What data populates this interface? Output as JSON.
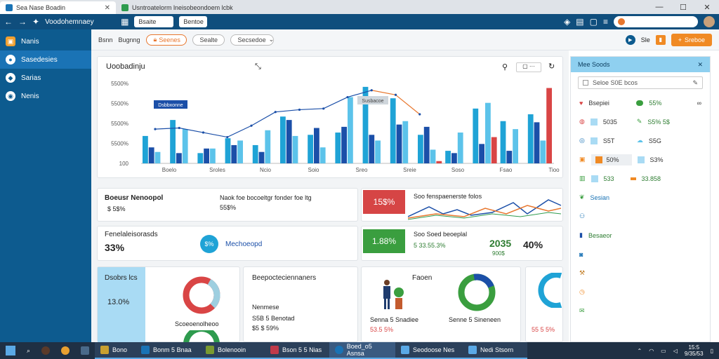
{
  "browser": {
    "tabs": [
      {
        "label": "Sea Nase Boadin",
        "active": true
      },
      {
        "label": "Voodo chemnaey",
        "active": false
      }
    ],
    "url": "Usntroatelorm lneisobeondoem lcbk",
    "window_controls": {
      "minimize": "—",
      "maximize": "☐",
      "close": "✕"
    }
  },
  "nav": {
    "path_label": "Voodohemnaey",
    "chips": [
      "Bsaite",
      "Bentoe"
    ]
  },
  "sidebar": {
    "items": [
      {
        "label": "Nanis",
        "active": false
      },
      {
        "label": "Sasedesies",
        "active": true
      },
      {
        "label": "Sarias",
        "active": false
      },
      {
        "label": "Nenis",
        "active": false
      }
    ]
  },
  "toolbar": {
    "links": [
      "Bsnn",
      "Bugnng"
    ],
    "pills": [
      "Seenes",
      "Sealte",
      "Secsedoe"
    ],
    "icon_text": "Sle",
    "action_label": "Sreboe"
  },
  "chart_card": {
    "title": "Uoobadinju",
    "callout_left": "Dsbbxonne",
    "callout_right": "Susbacoe"
  },
  "chart_data": {
    "type": "bar",
    "title": "Uoobadinju",
    "yticks": [
      "5500%",
      "5500%",
      "5500%",
      "5500%",
      "100"
    ],
    "xticks": [
      "Boelo",
      "Sroles",
      "Ncio",
      "Soio",
      "Sreo",
      "Sreie",
      "Soso",
      "Fsao",
      "Tioo"
    ],
    "series": [
      {
        "color": "#1fa3d6",
        "values": [
          24,
          38,
          9,
          22,
          16,
          41,
          25,
          27,
          67,
          57,
          25,
          11,
          48,
          37,
          43
        ]
      },
      {
        "color": "#1b4fa8",
        "values": [
          14,
          9,
          13,
          16,
          10,
          38,
          31,
          32,
          25,
          34,
          32,
          9,
          17,
          11,
          36
        ]
      },
      {
        "color": "#5cc3ea",
        "values": [
          10,
          30,
          13,
          20,
          29,
          24,
          14,
          58,
          20,
          37,
          12,
          27,
          53,
          30,
          20
        ]
      },
      {
        "color": "#d94545",
        "values": [
          0,
          0,
          0,
          0,
          0,
          0,
          0,
          0,
          0,
          0,
          2,
          0,
          23,
          0,
          66
        ]
      }
    ],
    "line": [
      30,
      31,
      27,
      23,
      33,
      45,
      47,
      48,
      58,
      64,
      60,
      43,
      51,
      47,
      49,
      50,
      52
    ],
    "ylim": [
      0,
      70
    ],
    "grid": false,
    "legend": "none"
  },
  "kpi": {
    "card1": {
      "title": "Boeusr Nenoopol",
      "value": "$ 5$%",
      "note_title": "Naok foe bocoeltgr fonder foe ltg",
      "note_value": "55$%"
    },
    "card2": {
      "value": "15$%",
      "title": "Soo fenspaenerste folos"
    },
    "card3": {
      "title": "Fenelaleisorasds",
      "value": "33%",
      "badge": "$%",
      "link": "Mechoeopd"
    },
    "card4": {
      "value": "1.88%",
      "title": "Soo Soed beoeplal",
      "sub": "5 33.55.3%",
      "big": "2035",
      "small": "900$",
      "pct": "40%"
    }
  },
  "bottom": {
    "card1": {
      "title": "Dsobrs lcs",
      "value": "13.0%",
      "sub": "Scoeoenolheoo"
    },
    "card2": {
      "title": "Beepocteciennaners",
      "lines": [
        "Nenmese",
        "S5B 5 Benotad",
        "$5 $ 59%"
      ]
    },
    "card3": {
      "title": "Faoen",
      "sub": "Senna 5 Snadiee",
      "value": "53.5 5%"
    },
    "card4": {
      "sub": "Senne 5 Sineneen",
      "value": "55 5 5%"
    }
  },
  "right_panel": {
    "title": "Mee Soods",
    "search_placeholder": "Seloe S0E bcos",
    "rows": [
      {
        "label": "Bsepiei",
        "v1": "55%",
        "v2": ""
      },
      {
        "label": "5035",
        "v1": "S5% 5$",
        "v2": ""
      },
      {
        "label": "S5T",
        "v1": "S5G",
        "v2": ""
      },
      {
        "label": "50%",
        "v1": "S3%",
        "v2": ""
      },
      {
        "label": "533",
        "v1": "33.858",
        "v2": ""
      },
      {
        "label": "Sesian",
        "v1": "",
        "v2": ""
      },
      {
        "label": "",
        "v1": "",
        "v2": ""
      },
      {
        "label": "Besaeor",
        "v1": "",
        "v2": ""
      }
    ]
  },
  "taskbar": {
    "apps": [
      "Bono",
      "Bonm 5 Bnaa",
      "Bolenooin",
      "Bson 5 5 Nias",
      "Boed_o5 Asnsa",
      "Seodoose Nes",
      "Nedi Stsorn"
    ],
    "time": "15:5",
    "date": "9/35/53"
  }
}
